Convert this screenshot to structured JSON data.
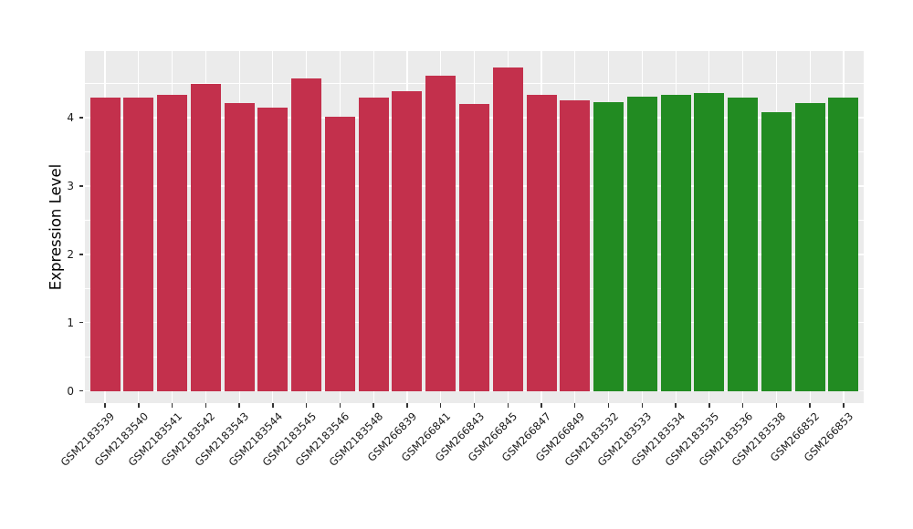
{
  "chart_data": {
    "type": "bar",
    "title": "",
    "xlabel": "",
    "ylabel": "Expression Level",
    "categories": [
      "GSM2183539",
      "GSM2183540",
      "GSM2183541",
      "GSM2183542",
      "GSM2183543",
      "GSM2183544",
      "GSM2183545",
      "GSM2183546",
      "GSM2183548",
      "GSM266839",
      "GSM266841",
      "GSM266843",
      "GSM266845",
      "GSM266847",
      "GSM266849",
      "GSM2183532",
      "GSM2183533",
      "GSM2183534",
      "GSM2183535",
      "GSM2183536",
      "GSM2183538",
      "GSM266852",
      "GSM266853"
    ],
    "values": [
      4.3,
      4.3,
      4.34,
      4.5,
      4.22,
      4.15,
      4.57,
      4.01,
      4.29,
      4.39,
      4.61,
      4.2,
      4.74,
      4.33,
      4.26,
      4.23,
      4.31,
      4.33,
      4.36,
      4.3,
      4.08,
      4.21,
      4.29
    ],
    "bar_group": [
      "red",
      "red",
      "red",
      "red",
      "red",
      "red",
      "red",
      "red",
      "red",
      "red",
      "red",
      "red",
      "red",
      "red",
      "red",
      "green",
      "green",
      "green",
      "green",
      "green",
      "green",
      "green",
      "green"
    ],
    "palette": {
      "red": "#C3304C",
      "green": "#228B22"
    },
    "yticks": [
      "0",
      "1",
      "2",
      "3",
      "4"
    ],
    "ytick_values": [
      0,
      1,
      2,
      3,
      4
    ],
    "minor_gridline_values": [
      0.5,
      1.5,
      2.5,
      3.5,
      4.5
    ],
    "ylim": [
      0,
      4.98
    ],
    "x_tick_rotation_deg": 45,
    "legend": "none",
    "panel_background": "#EBEBEB",
    "gridline_color": "#FFFFFF",
    "axis_text_color": "#1A1A1A",
    "tick_mark_color": "#333333"
  }
}
